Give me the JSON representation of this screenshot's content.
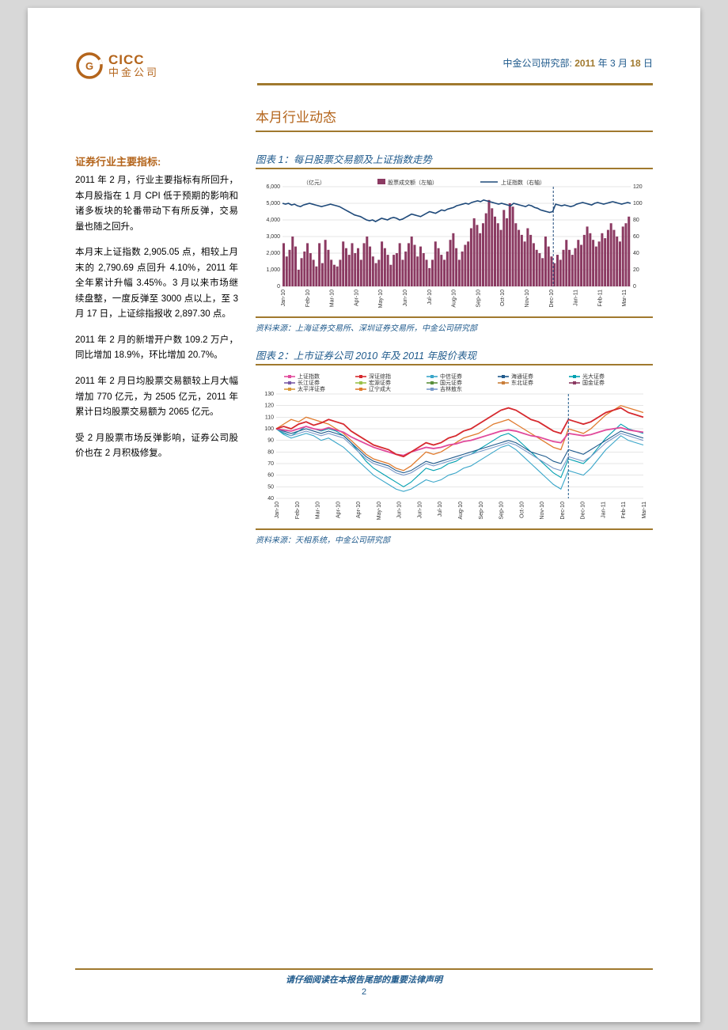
{
  "header": {
    "logo_en": "CICC",
    "logo_cn": "中金公司",
    "research_dept": "中金公司研究部:",
    "date_prefix": "2011",
    "date_mid": " 年 3 月 ",
    "date_day": "18",
    "date_suffix": " 日"
  },
  "section_title": "本月行业动态",
  "sidebar": {
    "heading": "证券行业主要指标:",
    "p1": "2011 年 2 月，行业主要指标有所回升，本月股指在 1 月 CPI 低于预期的影响和诸多板块的轮番带动下有所反弹，交易量也随之回升。",
    "p2": "本月末上证指数 2,905.05 点，相较上月末的 2,790.69 点回升 4.10%，2011 年全年累计升幅 3.45%。3 月以来市场继续盘整，一度反弹至 3000 点以上，至 3 月 17 日，上证综指报收 2,897.30 点。",
    "p3": "2011 年 2 月的新增开户数 109.2 万户，同比增加 18.9%，环比增加 20.7%。",
    "p4": "2011 年 2 月日均股票交易额较上月大幅增加 770 亿元，为 2505 亿元，2011 年累计日均股票交易额为 2065 亿元。",
    "p5": "受 2 月股票市场反弹影响，证券公司股价也在 2 月积极修复。"
  },
  "chart1": {
    "title": "图表 1：每日股票交易额及上证指数走势",
    "source": "资料来源：上海证券交易所、深圳证券交易所，中金公司研究部",
    "y1_label_unit": "（亿元）",
    "legend": [
      "股票成交额（左轴）",
      "上证指数（右轴）"
    ],
    "y1_ticks": [
      0,
      1000,
      2000,
      3000,
      4000,
      5000,
      6000
    ],
    "y1_tick_labels": [
      "0",
      "1,000",
      "2,000",
      "3,000",
      "4,000",
      "5,000",
      "6,000"
    ],
    "y2_ticks": [
      0,
      20,
      40,
      60,
      80,
      100,
      120
    ],
    "x_labels": [
      "Jan-10",
      "Feb-10",
      "Mar-10",
      "Apr-10",
      "May-10",
      "Jun-10",
      "Jul-10",
      "Aug-10",
      "Sep-10",
      "Oct-10",
      "Nov-10",
      "Dec-10",
      "Jan-11",
      "Feb-11",
      "Mar-11"
    ],
    "colors": {
      "bars": "#8b3a62",
      "line": "#1f4a7a",
      "grid": "#cccccc",
      "bg": "#ffffff"
    },
    "bars": [
      2600,
      1800,
      2200,
      3000,
      2400,
      1000,
      1700,
      2100,
      2600,
      2000,
      1600,
      1200,
      2600,
      1400,
      2800,
      2200,
      1600,
      1300,
      1200,
      1600,
      2700,
      2300,
      1900,
      2600,
      2000,
      2300,
      1600,
      2600,
      3000,
      2400,
      1800,
      1400,
      1600,
      2700,
      2300,
      1900,
      1300,
      1900,
      2000,
      2600,
      1600,
      2100,
      2600,
      3000,
      2500,
      1800,
      2400,
      2000,
      1600,
      1100,
      1600,
      2700,
      2300,
      1900,
      1600,
      2100,
      2800,
      3200,
      2300,
      1600,
      2100,
      2500,
      2700,
      3500,
      4100,
      3700,
      3200,
      3800,
      4400,
      5200,
      4700,
      4200,
      3800,
      3400,
      4600,
      4100,
      5000,
      4800,
      3800,
      3400,
      3100,
      2700,
      3500,
      3100,
      2600,
      2200,
      2000,
      1700,
      3000,
      2400,
      1800,
      1400,
      1900,
      1600,
      2200,
      2800,
      2200,
      1900,
      2300,
      2800,
      2500,
      3100,
      3600,
      3200,
      2800,
      2400,
      2700,
      3200,
      2900,
      3400,
      3800,
      3400,
      3000,
      2700,
      3600,
      3800,
      4200
    ],
    "line_vals": [
      100,
      99,
      100,
      98,
      99,
      97,
      96,
      98,
      99,
      100,
      99,
      98,
      97,
      96,
      97,
      98,
      99,
      98,
      97,
      96,
      94,
      92,
      90,
      88,
      86,
      85,
      84,
      82,
      80,
      79,
      80,
      78,
      80,
      82,
      81,
      80,
      82,
      83,
      82,
      80,
      81,
      83,
      85,
      87,
      86,
      85,
      84,
      86,
      88,
      90,
      89,
      88,
      90,
      92,
      91,
      93,
      94,
      95,
      97,
      98,
      99,
      100,
      99,
      101,
      102,
      103,
      102,
      104,
      103,
      102,
      101,
      100,
      99,
      100,
      99,
      98,
      97,
      100,
      99,
      98,
      97,
      96,
      98,
      97,
      95,
      94,
      92,
      91,
      90,
      89,
      90,
      99,
      98,
      97,
      98,
      97,
      96,
      97,
      99,
      100,
      101,
      100,
      99,
      98,
      100,
      101,
      100,
      99,
      100,
      101,
      102,
      101,
      100,
      99,
      100,
      101,
      100
    ],
    "divider_index": 91
  },
  "chart2": {
    "title": "图表 2：上市证券公司 2010 年及 2011 年股价表现",
    "source": "资料来源：天相系统，中金公司研究部",
    "y_ticks": [
      40,
      50,
      60,
      70,
      80,
      90,
      100,
      110,
      120,
      130
    ],
    "x_labels": [
      "Jan-10",
      "Feb-10",
      "Mar-10",
      "Apr-10",
      "Apr-10",
      "May-10",
      "Jun-10",
      "Jun-10",
      "Jul-10",
      "Aug-10",
      "Sep-10",
      "Sep-10",
      "Oct-10",
      "Nov-10",
      "Dec-10",
      "Dec-10",
      "Jan-11",
      "Feb-11",
      "Mar-11"
    ],
    "legend": [
      {
        "label": "上证指数",
        "color": "#e14a9b"
      },
      {
        "label": "深证综指",
        "color": "#d6292e"
      },
      {
        "label": "中信证券",
        "color": "#3aa6c9"
      },
      {
        "label": "海通证券",
        "color": "#1f5a8c"
      },
      {
        "label": "光大证券",
        "color": "#00a0b0"
      },
      {
        "label": "长江证券",
        "color": "#7a5aa6"
      },
      {
        "label": "宏源证券",
        "color": "#9bc24a"
      },
      {
        "label": "国元证券",
        "color": "#5a8f3a"
      },
      {
        "label": "东北证券",
        "color": "#c97e3a"
      },
      {
        "label": "国金证券",
        "color": "#8b3a62"
      },
      {
        "label": "太平洋证券",
        "color": "#d99a3a"
      },
      {
        "label": "辽宁成大",
        "color": "#e07b2e"
      },
      {
        "label": "吉林敖东",
        "color": "#7a9ac9"
      }
    ],
    "series": {
      "shen": [
        100,
        102,
        100,
        104,
        106,
        103,
        105,
        108,
        106,
        104,
        98,
        94,
        90,
        86,
        84,
        82,
        78,
        76,
        80,
        84,
        88,
        86,
        88,
        92,
        94,
        98,
        100,
        104,
        108,
        112,
        116,
        118,
        116,
        112,
        108,
        106,
        102,
        98,
        96,
        108,
        106,
        104,
        106,
        110,
        114,
        116,
        118,
        114,
        112,
        110
      ],
      "sh": [
        100,
        99,
        98,
        100,
        102,
        100,
        99,
        101,
        99,
        97,
        93,
        90,
        87,
        84,
        82,
        80,
        78,
        77,
        80,
        82,
        84,
        83,
        84,
        86,
        87,
        89,
        90,
        92,
        94,
        96,
        98,
        99,
        98,
        96,
        94,
        93,
        91,
        89,
        88,
        96,
        95,
        94,
        95,
        97,
        99,
        100,
        101,
        99,
        98,
        97
      ],
      "orange": [
        100,
        104,
        108,
        106,
        110,
        108,
        106,
        104,
        100,
        96,
        90,
        84,
        78,
        74,
        72,
        70,
        66,
        64,
        68,
        74,
        80,
        78,
        80,
        84,
        88,
        92,
        94,
        96,
        100,
        104,
        106,
        108,
        104,
        100,
        96,
        92,
        88,
        84,
        82,
        100,
        98,
        96,
        100,
        106,
        112,
        116,
        120,
        118,
        116,
        114
      ],
      "blue": [
        100,
        98,
        96,
        98,
        100,
        98,
        96,
        98,
        96,
        94,
        88,
        82,
        76,
        72,
        70,
        68,
        64,
        62,
        64,
        68,
        72,
        70,
        72,
        74,
        76,
        78,
        80,
        82,
        84,
        86,
        88,
        90,
        88,
        84,
        80,
        78,
        76,
        72,
        70,
        82,
        80,
        78,
        82,
        86,
        90,
        94,
        98,
        96,
        94,
        92
      ],
      "teal": [
        100,
        97,
        94,
        96,
        98,
        96,
        94,
        96,
        94,
        92,
        86,
        80,
        74,
        70,
        68,
        66,
        62,
        60,
        62,
        66,
        70,
        68,
        70,
        72,
        74,
        76,
        78,
        80,
        82,
        84,
        86,
        88,
        86,
        82,
        78,
        74,
        70,
        66,
        64,
        76,
        74,
        72,
        76,
        82,
        88,
        92,
        96,
        94,
        92,
        90
      ],
      "cyan": [
        100,
        96,
        94,
        98,
        102,
        100,
        98,
        100,
        98,
        94,
        88,
        80,
        72,
        66,
        62,
        58,
        54,
        50,
        54,
        60,
        66,
        64,
        66,
        70,
        72,
        76,
        78,
        82,
        86,
        90,
        94,
        96,
        92,
        86,
        80,
        74,
        68,
        62,
        58,
        74,
        72,
        70,
        76,
        84,
        92,
        98,
        104,
        100,
        98,
        96
      ],
      "low": [
        100,
        95,
        92,
        94,
        96,
        94,
        90,
        92,
        88,
        84,
        78,
        72,
        66,
        60,
        56,
        52,
        48,
        46,
        48,
        52,
        56,
        54,
        56,
        60,
        62,
        66,
        68,
        72,
        76,
        80,
        84,
        86,
        82,
        76,
        70,
        64,
        58,
        52,
        48,
        64,
        62,
        60,
        66,
        74,
        82,
        88,
        94,
        90,
        88,
        86
      ]
    },
    "divider_index": 39
  },
  "footer": {
    "text": "请仔细阅读在本报告尾部的重要法律声明",
    "page": "2"
  }
}
